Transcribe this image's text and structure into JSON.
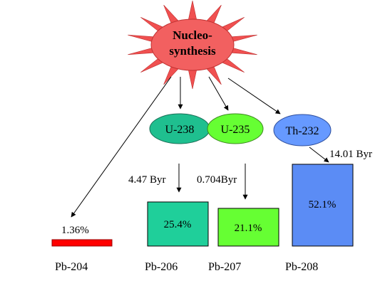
{
  "source": {
    "label_line1": "Nucleo-",
    "label_line2": "synthesis",
    "fill_color": "#f26060",
    "ray_color": "#f05050"
  },
  "parents": [
    {
      "id": "u238",
      "label": "U-238",
      "color": "#1fbf8f"
    },
    {
      "id": "u235",
      "label": "U-235",
      "color": "#66ff33"
    },
    {
      "id": "th232",
      "label": "Th-232",
      "color": "#6699ff"
    }
  ],
  "half_lives": [
    {
      "id": "u238",
      "text": "4.47 Byr"
    },
    {
      "id": "u235",
      "text": "0.704Byr"
    },
    {
      "id": "th232",
      "text": "14.01 Byr"
    }
  ],
  "products": [
    {
      "id": "pb204",
      "label": "Pb-204",
      "percent_text": "1.36%",
      "value": 1.36,
      "color": "#ff0000"
    },
    {
      "id": "pb206",
      "label": "Pb-206",
      "percent_text": "25.4%",
      "value": 25.4,
      "color": "#1fcf9a"
    },
    {
      "id": "pb207",
      "label": "Pb-207",
      "percent_text": "21.1%",
      "value": 21.1,
      "color": "#66ff33"
    },
    {
      "id": "pb208",
      "label": "Pb-208",
      "percent_text": "52.1%",
      "value": 52.1,
      "color": "#5b8cf5"
    }
  ]
}
